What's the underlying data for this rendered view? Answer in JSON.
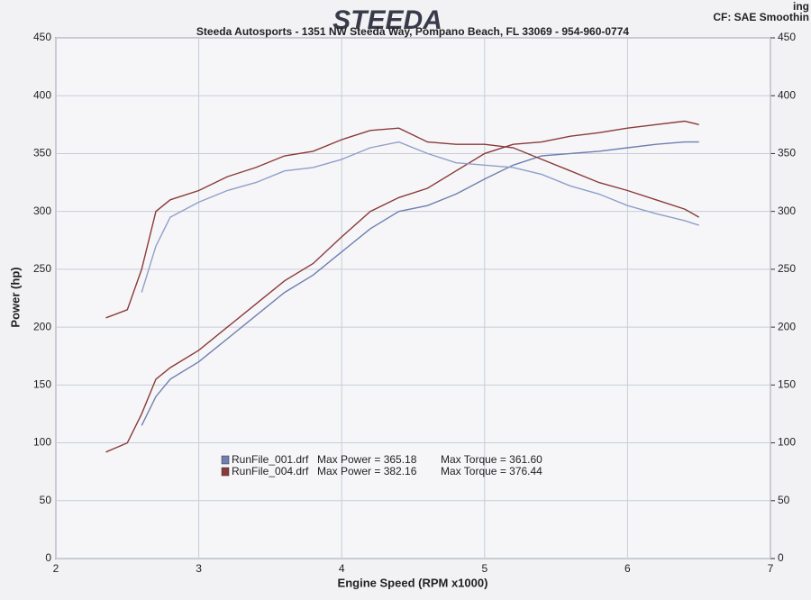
{
  "chart_data": {
    "type": "line",
    "logo": "STEEDA",
    "title": "Steeda Autosports - 1351 NW Steeda Way, Pompano Beach, FL 33069 - 954-960-0774",
    "corner_top": "ing",
    "corner_info": "CF: SAE  Smoothin",
    "x_label": "Engine Speed (RPM x1000)",
    "y_label": "Power (hp)",
    "xlim": [
      2,
      7
    ],
    "xticks": [
      2,
      3,
      4,
      5,
      6,
      7
    ],
    "ylim": [
      0,
      450
    ],
    "yticks": [
      0,
      50,
      100,
      150,
      200,
      250,
      300,
      350,
      400,
      450
    ],
    "y2lim": [
      0,
      450
    ],
    "y2ticks": [
      0,
      50,
      100,
      150,
      200,
      250,
      300,
      350,
      400,
      450
    ],
    "grid": true,
    "x": [
      2.35,
      2.5,
      2.6,
      2.7,
      2.8,
      3.0,
      3.2,
      3.4,
      3.6,
      3.8,
      4.0,
      4.2,
      4.4,
      4.6,
      4.8,
      5.0,
      5.2,
      5.4,
      5.6,
      5.8,
      6.0,
      6.2,
      6.4,
      6.5
    ],
    "series": [
      {
        "color": "#8a3a3a",
        "values": [
          92,
          100,
          125,
          155,
          165,
          180,
          200,
          220,
          240,
          255,
          278,
          300,
          312,
          320,
          335,
          350,
          358,
          360,
          365,
          368,
          372,
          375,
          378,
          375
        ]
      },
      {
        "color": "#6f7fb0",
        "values": [
          null,
          null,
          115,
          140,
          155,
          170,
          190,
          210,
          230,
          245,
          265,
          285,
          300,
          305,
          315,
          328,
          340,
          348,
          350,
          352,
          355,
          358,
          360,
          360
        ]
      },
      {
        "color": "#8a3a3a",
        "axis": "y2",
        "values": [
          208,
          215,
          250,
          300,
          310,
          318,
          330,
          338,
          348,
          352,
          362,
          370,
          372,
          360,
          358,
          358,
          355,
          345,
          335,
          325,
          318,
          310,
          302,
          295
        ]
      },
      {
        "color": "#8f9fc8",
        "axis": "y2",
        "values": [
          null,
          null,
          230,
          270,
          295,
          308,
          318,
          325,
          335,
          338,
          345,
          355,
          360,
          350,
          342,
          340,
          338,
          332,
          322,
          315,
          305,
          298,
          292,
          288
        ]
      }
    ],
    "legend": [
      {
        "file": "RunFile_001.drf",
        "power": "Max Power = 365.18",
        "torque": "Max Torque = 361.60",
        "color": "#6f7fb0"
      },
      {
        "file": "RunFile_004.drf",
        "power": "Max Power = 382.16",
        "torque": "Max Torque = 376.44",
        "color": "#8a3a3a"
      }
    ]
  }
}
